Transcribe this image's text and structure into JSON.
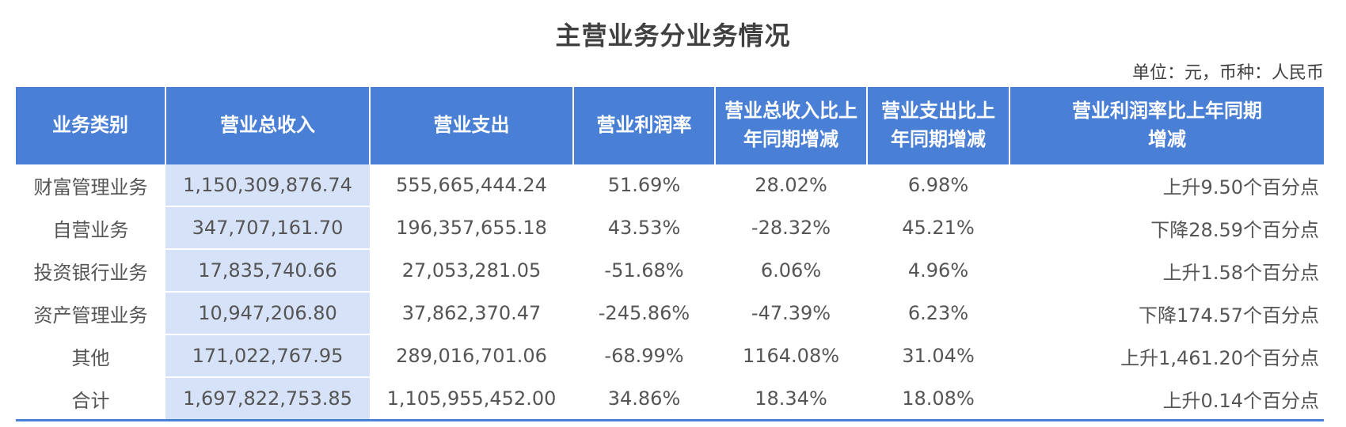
{
  "title": "主营业务分业务情况",
  "unit": "单位：元，币种：人民币",
  "chart_data": {
    "type": "table",
    "columns": [
      "业务类别",
      "营业总收入",
      "营业支出",
      "营业利润率",
      "营业总收入比上年同期增减",
      "营业支出比上年同期增减",
      "营业利润率比上年同期增减"
    ],
    "column_lines": [
      [
        "业务类别"
      ],
      [
        "营业总收入"
      ],
      [
        "营业支出"
      ],
      [
        "营业利润率"
      ],
      [
        "营业总收入比上",
        "年同期增减"
      ],
      [
        "营业支出比上",
        "年同期增减"
      ],
      [
        "营业利润率比上年同期",
        "增减"
      ]
    ],
    "rows": [
      [
        "财富管理业务",
        "1,150,309,876.74",
        "555,665,444.24",
        "51.69%",
        "28.02%",
        "6.98%",
        "上升9.50个百分点"
      ],
      [
        "自营业务",
        "347,707,161.70",
        "196,357,655.18",
        "43.53%",
        "-28.32%",
        "45.21%",
        "下降28.59个百分点"
      ],
      [
        "投资银行业务",
        "17,835,740.66",
        "27,053,281.05",
        "-51.68%",
        "6.06%",
        "4.96%",
        "上升1.58个百分点"
      ],
      [
        "资产管理业务",
        "10,947,206.80",
        "37,862,370.47",
        "-245.86%",
        "-47.39%",
        "6.23%",
        "下降174.57个百分点"
      ],
      [
        "其他",
        "171,022,767.95",
        "289,016,701.06",
        "-68.99%",
        "1164.08%",
        "31.04%",
        "上升1,461.20个百分点"
      ],
      [
        "合计",
        "1,697,822,753.85",
        "1,105,955,452.00",
        "34.86%",
        "18.34%",
        "18.08%",
        "上升0.14个百分点"
      ]
    ]
  },
  "colors": {
    "header_bg": "#4a7fd6",
    "highlight_col": "#d6e2f7",
    "text": "#555555"
  }
}
